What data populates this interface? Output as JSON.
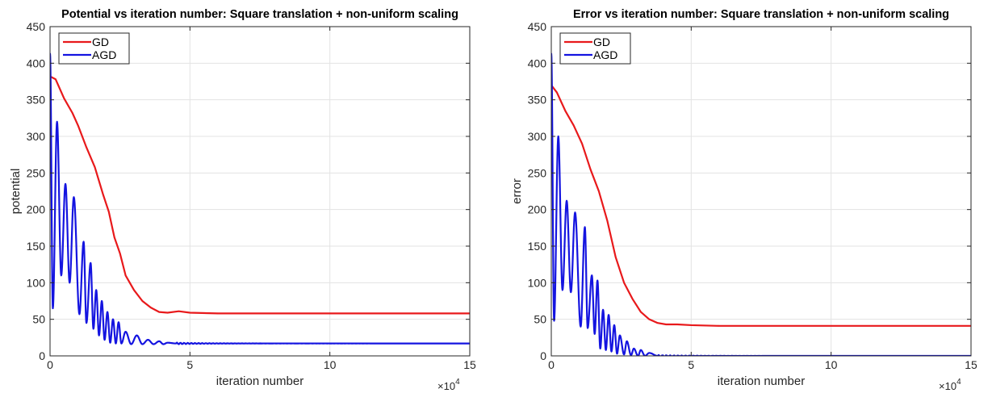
{
  "chart_data": [
    {
      "type": "line",
      "title": "Potential vs iteration number: Square translation + non-uniform scaling",
      "xlabel": "iteration number",
      "ylabel": "potential",
      "x_exponent_label": "×10",
      "x_exponent_power": "4",
      "xlim": [
        0,
        15
      ],
      "ylim": [
        0,
        450
      ],
      "xticks": [
        "0",
        "5",
        "10",
        "15"
      ],
      "yticks": [
        "0",
        "50",
        "100",
        "150",
        "200",
        "250",
        "300",
        "350",
        "400",
        "450"
      ],
      "grid": true,
      "legend_position": "top-left",
      "series": [
        {
          "name": "GD",
          "color": "#e8191b",
          "style": "smooth",
          "x": [
            0,
            0.2,
            0.5,
            0.8,
            1.0,
            1.3,
            1.6,
            1.9,
            2.1,
            2.3,
            2.5,
            2.7,
            3.0,
            3.3,
            3.6,
            3.9,
            4.2,
            4.6,
            5.0,
            6.0,
            8.0,
            10.0,
            12.0,
            15.0
          ],
          "y": [
            382,
            378,
            352,
            332,
            315,
            285,
            258,
            220,
            197,
            162,
            140,
            110,
            90,
            75,
            66,
            60,
            59,
            61,
            59,
            58,
            58,
            58,
            58,
            58
          ]
        },
        {
          "name": "AGD",
          "color": "#1414e0",
          "style": "oscillation",
          "x0": 0,
          "y0": 413,
          "peaks": [
            [
              0.25,
              320
            ],
            [
              0.55,
              235
            ],
            [
              0.85,
              217
            ],
            [
              1.2,
              156
            ],
            [
              1.45,
              127
            ],
            [
              1.65,
              90
            ],
            [
              1.85,
              75
            ],
            [
              2.05,
              60
            ],
            [
              2.25,
              50
            ],
            [
              2.45,
              46
            ],
            [
              2.7,
              33
            ],
            [
              3.1,
              28
            ],
            [
              3.5,
              22
            ],
            [
              3.9,
              20
            ],
            [
              4.2,
              18
            ]
          ],
          "troughs": [
            [
              0.1,
              65
            ],
            [
              0.4,
              110
            ],
            [
              0.7,
              100
            ],
            [
              1.05,
              57
            ],
            [
              1.3,
              45
            ],
            [
              1.55,
              37
            ],
            [
              1.75,
              28
            ],
            [
              1.95,
              22
            ],
            [
              2.15,
              18
            ],
            [
              2.35,
              17
            ],
            [
              2.55,
              17
            ],
            [
              2.9,
              16
            ],
            [
              3.3,
              16
            ],
            [
              3.7,
              16
            ],
            [
              4.05,
              16
            ]
          ],
          "tail_x": [
            4.5,
            15
          ],
          "tail_y": 17
        }
      ]
    },
    {
      "type": "line",
      "title": "Error vs iteration number: Square translation + non-uniform scaling",
      "xlabel": "iteration number",
      "ylabel": "error",
      "x_exponent_label": "×10",
      "x_exponent_power": "4",
      "xlim": [
        0,
        15
      ],
      "ylim": [
        0,
        450
      ],
      "xticks": [
        "0",
        "5",
        "10",
        "15"
      ],
      "yticks": [
        "0",
        "50",
        "100",
        "150",
        "200",
        "250",
        "300",
        "350",
        "400",
        "450"
      ],
      "grid": true,
      "legend_position": "top-left",
      "series": [
        {
          "name": "GD",
          "color": "#e8191b",
          "style": "smooth",
          "x": [
            0,
            0.2,
            0.5,
            0.8,
            1.1,
            1.4,
            1.7,
            2.0,
            2.3,
            2.6,
            2.9,
            3.2,
            3.5,
            3.8,
            4.1,
            4.5,
            5.0,
            6.0,
            8.0,
            10.0,
            12.0,
            15.0
          ],
          "y": [
            370,
            360,
            335,
            315,
            290,
            255,
            225,
            185,
            135,
            100,
            78,
            60,
            50,
            45,
            43,
            43,
            42,
            41,
            41,
            41,
            41,
            41
          ]
        },
        {
          "name": "AGD",
          "color": "#1414e0",
          "style": "oscillation",
          "x0": 0,
          "y0": 413,
          "peaks": [
            [
              0.25,
              300
            ],
            [
              0.55,
              212
            ],
            [
              0.85,
              196
            ],
            [
              1.2,
              176
            ],
            [
              1.45,
              110
            ],
            [
              1.65,
              103
            ],
            [
              1.85,
              63
            ],
            [
              2.05,
              56
            ],
            [
              2.25,
              42
            ],
            [
              2.45,
              28
            ],
            [
              2.7,
              20
            ],
            [
              2.95,
              10
            ],
            [
              3.2,
              8
            ],
            [
              3.5,
              4
            ]
          ],
          "troughs": [
            [
              0.1,
              48
            ],
            [
              0.4,
              90
            ],
            [
              0.7,
              87
            ],
            [
              1.05,
              40
            ],
            [
              1.3,
              38
            ],
            [
              1.55,
              30
            ],
            [
              1.75,
              10
            ],
            [
              1.95,
              8
            ],
            [
              2.15,
              6
            ],
            [
              2.35,
              3
            ],
            [
              2.6,
              2
            ],
            [
              2.85,
              1
            ],
            [
              3.1,
              0
            ],
            [
              3.35,
              0
            ]
          ],
          "tail_x": [
            3.8,
            15
          ],
          "tail_y": 0
        }
      ]
    }
  ]
}
